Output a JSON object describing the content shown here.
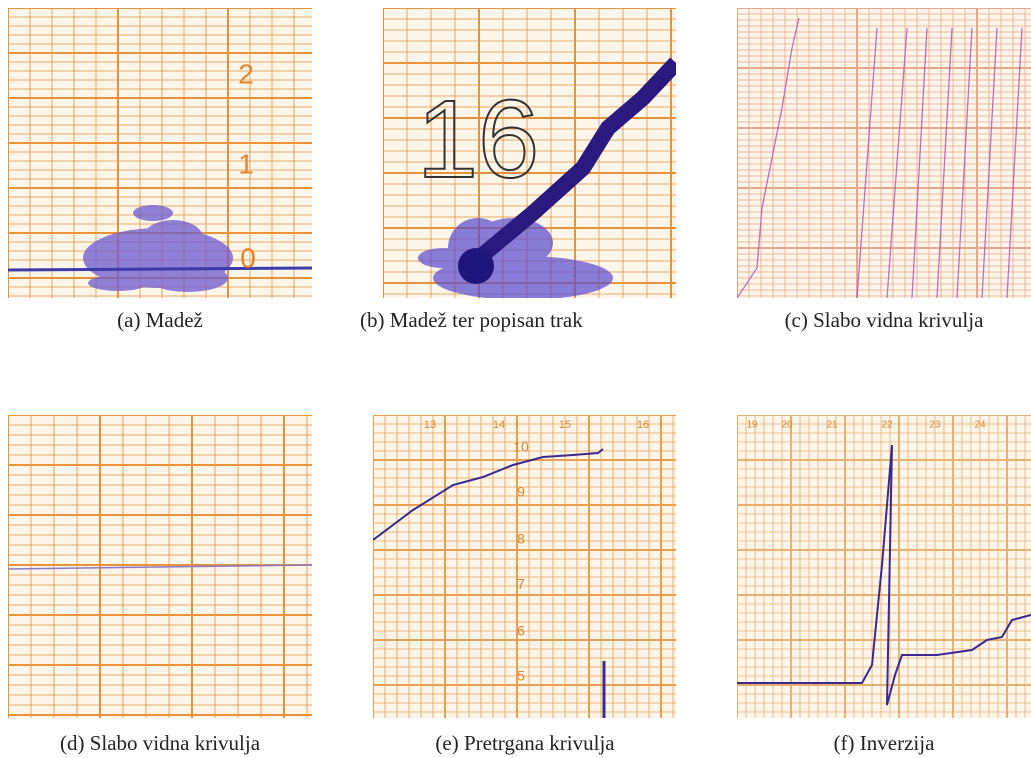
{
  "panels": [
    {
      "caption": "(a) Madež",
      "labels": [
        "2",
        "1",
        "0"
      ]
    },
    {
      "caption": "(b) Madež ter popisan trak",
      "labels": [
        "16"
      ]
    },
    {
      "caption": "(c) Slabo vidna krivulja",
      "labels": []
    },
    {
      "caption": "(d) Slabo vidna krivulja",
      "labels": []
    },
    {
      "caption": "(e) Pretrgana krivulja",
      "labels": [
        "13",
        "14",
        "15",
        "16",
        "10",
        "9",
        "8",
        "7",
        "6",
        "5"
      ]
    },
    {
      "caption": "(f) Inverzija",
      "labels": [
        "19",
        "20",
        "21",
        "22",
        "23",
        "24"
      ]
    }
  ]
}
